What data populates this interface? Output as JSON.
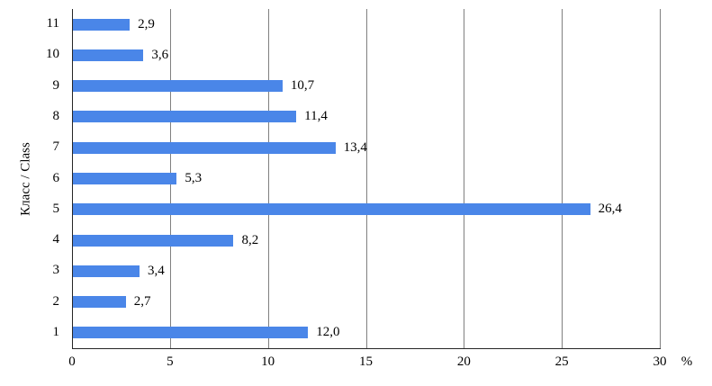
{
  "chart_data": {
    "type": "bar",
    "orientation": "horizontal",
    "title": "",
    "ylabel": "Класс / Class",
    "x_unit": "%",
    "categories": [
      "11",
      "10",
      "9",
      "8",
      "7",
      "6",
      "5",
      "4",
      "3",
      "2",
      "1"
    ],
    "values": [
      2.9,
      3.6,
      10.7,
      11.4,
      13.4,
      5.3,
      26.4,
      8.2,
      3.4,
      2.7,
      12.0
    ],
    "value_labels": [
      "2,9",
      "3,6",
      "10,7",
      "11,4",
      "13,4",
      "5,3",
      "26,4",
      "8,2",
      "3,4",
      "2,7",
      "12,0"
    ],
    "xlim": [
      0,
      30
    ],
    "x_ticks": [
      0,
      5,
      10,
      15,
      20,
      25,
      30
    ],
    "x_tick_labels": [
      "0",
      "5",
      "10",
      "15",
      "20",
      "25",
      "30"
    ],
    "grid": "vertical",
    "legend": "none",
    "colors": {
      "bar": "#4a86e8",
      "gridline": "#808080",
      "axis": "#262626",
      "text": "#000000",
      "background": "#ffffff"
    }
  }
}
